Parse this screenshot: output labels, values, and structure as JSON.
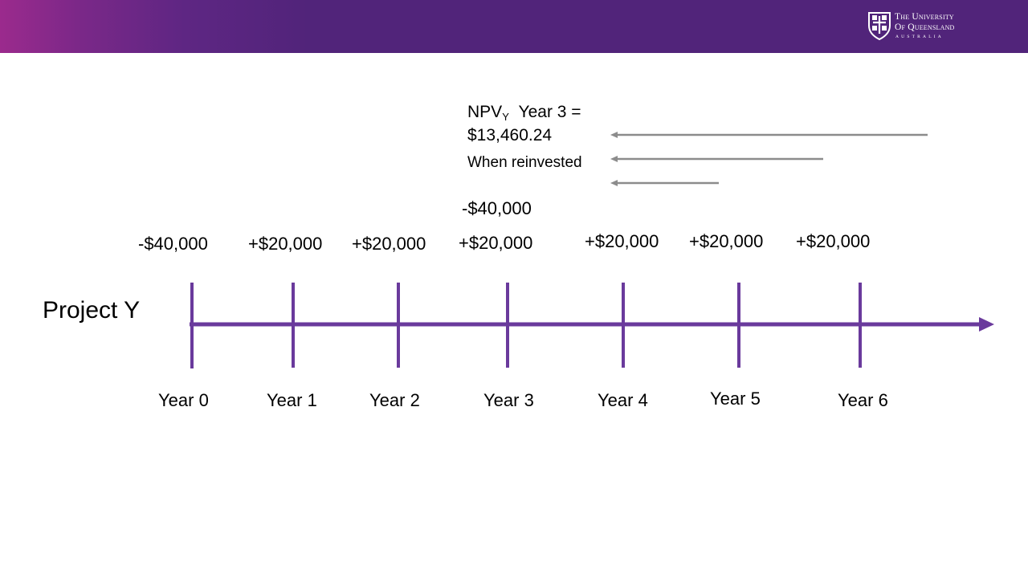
{
  "header": {
    "logo": {
      "line1": "The University",
      "line2": "Of Queensland",
      "line3": "AUSTRALIA"
    },
    "colors": {
      "band_start": "#9b2a8d",
      "band_main": "#51247a"
    }
  },
  "annotation": {
    "npv_label": "NPV",
    "npv_subscript": "Y",
    "npv_year": "Year 3 =",
    "npv_value": "$13,460.24",
    "reinvest_note": "When reinvested"
  },
  "project_label": "Project Y",
  "extra_cashflow_year3": "-$40,000",
  "timeline": [
    {
      "year": "Year 0",
      "cashflow": "-$40,000"
    },
    {
      "year": "Year 1",
      "cashflow": "+$20,000"
    },
    {
      "year": "Year 2",
      "cashflow": "+$20,000"
    },
    {
      "year": "Year 3",
      "cashflow": "+$20,000"
    },
    {
      "year": "Year 4",
      "cashflow": "+$20,000"
    },
    {
      "year": "Year 5",
      "cashflow": "+$20,000"
    },
    {
      "year": "Year 6",
      "cashflow": "+$20,000"
    }
  ],
  "colors": {
    "timeline": "#6a3a9c",
    "arrows": "#8c8c8c",
    "text": "#000000"
  }
}
